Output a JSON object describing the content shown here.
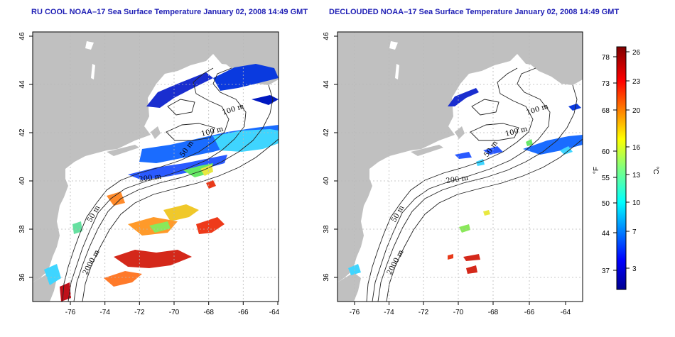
{
  "panels": [
    {
      "title": "RU COOL NOAA–17 Sea Surface Temperature January 02, 2008 14:49 GMT",
      "x_ticks": [
        "-76",
        "-74",
        "-72",
        "-70",
        "-68",
        "-66",
        "-64"
      ],
      "y_ticks": [
        "36",
        "38",
        "40",
        "42",
        "44",
        "46"
      ],
      "contour_labels": [
        "100 m",
        "100 m",
        "50 m",
        "200 m",
        "50 m",
        "2000 m"
      ]
    },
    {
      "title": "DECLOUDED NOAA–17 Sea Surface Temperature January 02, 2008 14:49 GMT",
      "x_ticks": [
        "-76",
        "-74",
        "-72",
        "-70",
        "-68",
        "-66",
        "-64"
      ],
      "y_ticks": [
        "36",
        "38",
        "40",
        "42",
        "44",
        "46"
      ],
      "contour_labels": [
        "100 m",
        "100 m",
        "50 m",
        "200 m",
        "50 m",
        "2000 m"
      ]
    }
  ],
  "colorbar": {
    "f_label": "°F",
    "c_label": "°C",
    "f_ticks": [
      "78",
      "73",
      "68",
      "60",
      "55",
      "50",
      "44",
      "37"
    ],
    "c_ticks": [
      "26",
      "23",
      "20",
      "16",
      "13",
      "10",
      "7",
      "3"
    ]
  },
  "colors": {
    "land": "#c0c0c0",
    "ocean": "#ffffff",
    "title": "#1f1fb5"
  }
}
